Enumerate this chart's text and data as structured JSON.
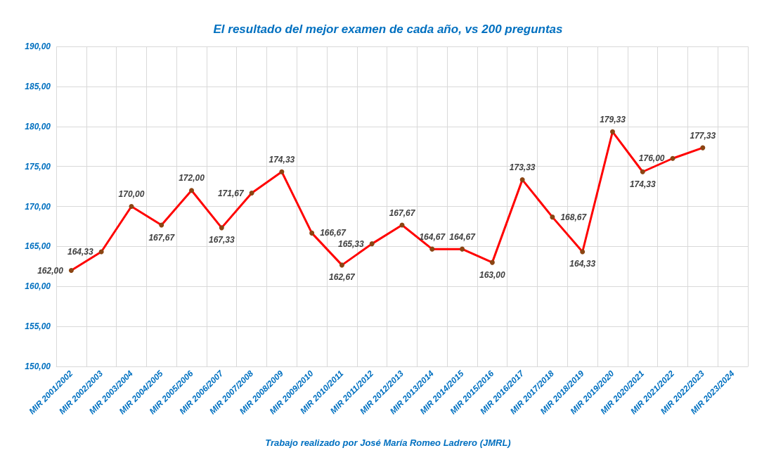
{
  "chart_data": {
    "type": "line",
    "title": "El resultado del mejor examen de cada año, vs 200 preguntas",
    "categories": [
      "MIR 2001/2002",
      "MIR 2002/2003",
      "MIR 2003/2004",
      "MIR 2004/2005",
      "MIR 2005/2006",
      "MIR 2006/2007",
      "MIR 2007/2008",
      "MIR 2008/2009",
      "MIR 2009/2010",
      "MIR 2010/2011",
      "MIR 2011/2012",
      "MIR 2012/2013",
      "MIR 2013/2014",
      "MIR 2014/2015",
      "MIR 2015/2016",
      "MIR 2016/2017",
      "MIR 2017/2018",
      "MIR 2018/2019",
      "MIR 2019/2020",
      "MIR 2020/2021",
      "MIR 2021/2022",
      "MIR 2022/2023",
      "MIR 2023/2024"
    ],
    "series": [
      {
        "color": "#ff0000",
        "values": [
          162,
          164.33,
          170,
          167.67,
          172,
          167.33,
          171.67,
          174.33,
          166.67,
          162.67,
          165.33,
          167.67,
          164.67,
          164.67,
          163,
          173.33,
          168.67,
          164.33,
          179.33,
          174.33,
          176,
          177.33,
          null
        ],
        "value_labels": [
          "162,00",
          "164,33",
          "170,00",
          "167,67",
          "172,00",
          "167,33",
          "171,67",
          "174,33",
          "166,67",
          "162,67",
          "165,33",
          "167,67",
          "164,67",
          "164,67",
          "163,00",
          "173,33",
          "168,67",
          "164,33",
          "179,33",
          "174,33",
          "176,00",
          "177,33",
          null
        ]
      }
    ],
    "ylim": [
      150,
      190
    ],
    "yticks": [
      {
        "value": 150,
        "label": "150,00"
      },
      {
        "value": 155,
        "label": "155,00"
      },
      {
        "value": 160,
        "label": "160,00"
      },
      {
        "value": 165,
        "label": "165,00"
      },
      {
        "value": 170,
        "label": "170,00"
      },
      {
        "value": 175,
        "label": "175,00"
      },
      {
        "value": 180,
        "label": "180,00"
      },
      {
        "value": 185,
        "label": "185,00"
      },
      {
        "value": 190,
        "label": "190,00"
      }
    ],
    "grid": true,
    "marker": "circle",
    "line_style": "solid",
    "annotations": [
      "Trabajo realizado por José María Romeo Ladrero (JMRL)"
    ]
  }
}
